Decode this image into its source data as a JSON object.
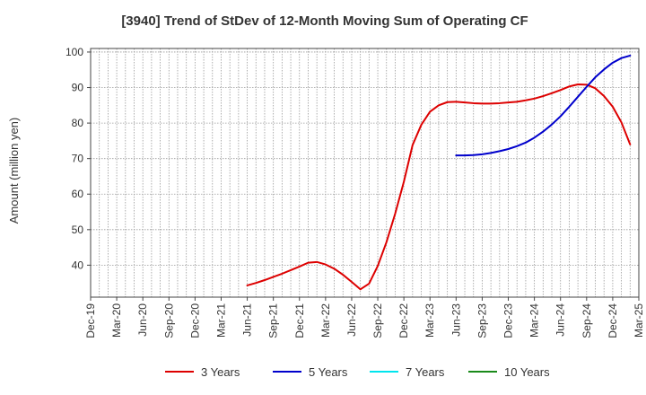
{
  "chart_data": {
    "type": "line",
    "title": "[3940]  Trend of StDev of 12-Month Moving Sum of Operating CF",
    "ylabel": "Amount (million yen)",
    "xlabel": "",
    "ylim": [
      31,
      101
    ],
    "yticks": [
      40,
      50,
      60,
      70,
      80,
      90,
      100
    ],
    "grid": true,
    "legend_position": "bottom",
    "x_tick_labels": [
      "Dec-19",
      "Mar-20",
      "Jun-20",
      "Sep-20",
      "Dec-20",
      "Mar-21",
      "Jun-21",
      "Sep-21",
      "Dec-21",
      "Mar-22",
      "Jun-22",
      "Sep-22",
      "Dec-22",
      "Mar-23",
      "Jun-23",
      "Sep-23",
      "Dec-23",
      "Mar-24",
      "Jun-24",
      "Sep-24",
      "Dec-24",
      "Mar-25"
    ],
    "months": [
      "Dec-19",
      "Jan-20",
      "Feb-20",
      "Mar-20",
      "Apr-20",
      "May-20",
      "Jun-20",
      "Jul-20",
      "Aug-20",
      "Sep-20",
      "Oct-20",
      "Nov-20",
      "Dec-20",
      "Jan-21",
      "Feb-21",
      "Mar-21",
      "Apr-21",
      "May-21",
      "Jun-21",
      "Jul-21",
      "Aug-21",
      "Sep-21",
      "Oct-21",
      "Nov-21",
      "Dec-21",
      "Jan-22",
      "Feb-22",
      "Mar-22",
      "Apr-22",
      "May-22",
      "Jun-22",
      "Jul-22",
      "Aug-22",
      "Sep-22",
      "Oct-22",
      "Nov-22",
      "Dec-22",
      "Jan-23",
      "Feb-23",
      "Mar-23",
      "Apr-23",
      "May-23",
      "Jun-23",
      "Jul-23",
      "Aug-23",
      "Sep-23",
      "Oct-23",
      "Nov-23",
      "Dec-23",
      "Jan-24",
      "Feb-24",
      "Mar-24",
      "Apr-24",
      "May-24",
      "Jun-24",
      "Jul-24",
      "Aug-24",
      "Sep-24",
      "Oct-24",
      "Nov-24",
      "Dec-24",
      "Jan-25",
      "Feb-25",
      "Mar-25"
    ],
    "series": [
      {
        "name": "3 Years",
        "color": "#dd0000",
        "values": [
          null,
          null,
          null,
          null,
          null,
          null,
          null,
          null,
          null,
          null,
          null,
          null,
          null,
          null,
          null,
          null,
          null,
          null,
          34.3,
          35.0,
          35.8,
          36.7,
          37.6,
          38.6,
          39.6,
          40.7,
          40.9,
          40.2,
          39.0,
          37.3,
          35.3,
          33.2,
          34.8,
          39.8,
          46.5,
          54.5,
          63.5,
          73.8,
          79.5,
          83.2,
          85.0,
          85.9,
          86.0,
          85.8,
          85.6,
          85.5,
          85.5,
          85.6,
          85.8,
          86.0,
          86.4,
          86.9,
          87.6,
          88.4,
          89.3,
          90.3,
          90.9,
          90.8,
          89.8,
          87.6,
          84.6,
          80.2,
          74.0,
          null
        ]
      },
      {
        "name": "5 Years",
        "color": "#0000cc",
        "values": [
          null,
          null,
          null,
          null,
          null,
          null,
          null,
          null,
          null,
          null,
          null,
          null,
          null,
          null,
          null,
          null,
          null,
          null,
          null,
          null,
          null,
          null,
          null,
          null,
          null,
          null,
          null,
          null,
          null,
          null,
          null,
          null,
          null,
          null,
          null,
          null,
          null,
          null,
          null,
          null,
          null,
          null,
          70.9,
          70.9,
          71.0,
          71.2,
          71.6,
          72.1,
          72.7,
          73.5,
          74.5,
          75.9,
          77.6,
          79.6,
          81.9,
          84.6,
          87.4,
          90.2,
          92.9,
          95.1,
          97.0,
          98.3,
          99.0,
          null
        ]
      },
      {
        "name": "7 Years",
        "color": "#00e5ee",
        "values": []
      },
      {
        "name": "10 Years",
        "color": "#1a8a1a",
        "values": []
      }
    ]
  }
}
